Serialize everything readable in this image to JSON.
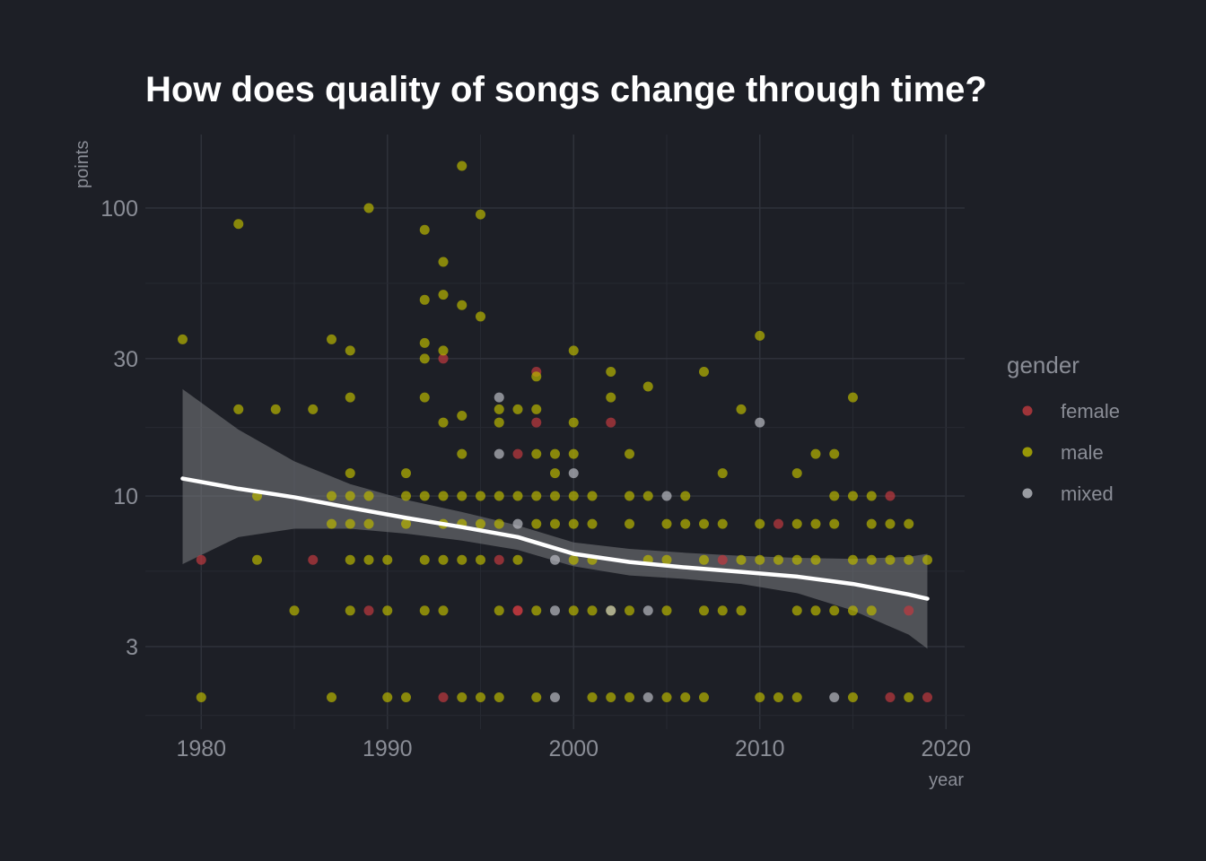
{
  "chart_data": {
    "type": "scatter",
    "title": "How does quality of songs change through time?",
    "xlabel": "year",
    "ylabel": "points",
    "xlim": [
      1977,
      2021
    ],
    "ylim": [
      1.55,
      180
    ],
    "y_scale": "log",
    "x_ticks": [
      "1980",
      "1990",
      "2000",
      "2010",
      "2020"
    ],
    "y_ticks": [
      "3",
      "10",
      "30",
      "100"
    ],
    "grid": true,
    "legend": {
      "title": "gender",
      "placement": "right",
      "entries": [
        {
          "label": "female",
          "color": "#c0393f"
        },
        {
          "label": "male",
          "color": "#b8b500"
        },
        {
          "label": "mixed",
          "color": "#b9bbc2"
        }
      ]
    },
    "series": [
      {
        "name": "female",
        "points": [
          [
            1980,
            6
          ],
          [
            1986,
            6
          ],
          [
            1989,
            4
          ],
          [
            1993,
            30
          ],
          [
            1997,
            14
          ],
          [
            1998,
            18
          ],
          [
            1998,
            27
          ],
          [
            2002,
            18
          ],
          [
            2008,
            6
          ],
          [
            2011,
            8
          ],
          [
            2017,
            10
          ],
          [
            2018,
            4
          ],
          [
            2017,
            2
          ],
          [
            2019,
            2
          ],
          [
            1993,
            2
          ],
          [
            1996,
            6
          ],
          [
            1997,
            4
          ],
          [
            1997,
            4
          ]
        ]
      },
      {
        "name": "male",
        "points": [
          [
            1979,
            35
          ],
          [
            1980,
            2
          ],
          [
            1982,
            88
          ],
          [
            1982,
            20
          ],
          [
            1983,
            10
          ],
          [
            1983,
            6
          ],
          [
            1984,
            20
          ],
          [
            1985,
            4
          ],
          [
            1986,
            20
          ],
          [
            1987,
            35
          ],
          [
            1987,
            10
          ],
          [
            1987,
            8
          ],
          [
            1987,
            2
          ],
          [
            1988,
            32
          ],
          [
            1988,
            22
          ],
          [
            1988,
            12
          ],
          [
            1988,
            10
          ],
          [
            1988,
            8
          ],
          [
            1988,
            6
          ],
          [
            1988,
            4
          ],
          [
            1989,
            100
          ],
          [
            1989,
            10
          ],
          [
            1989,
            8
          ],
          [
            1989,
            6
          ],
          [
            1990,
            6
          ],
          [
            1990,
            4
          ],
          [
            1990,
            2
          ],
          [
            1991,
            12
          ],
          [
            1991,
            10
          ],
          [
            1991,
            8
          ],
          [
            1991,
            2
          ],
          [
            1992,
            84
          ],
          [
            1992,
            48
          ],
          [
            1992,
            34
          ],
          [
            1992,
            30
          ],
          [
            1992,
            22
          ],
          [
            1992,
            10
          ],
          [
            1992,
            6
          ],
          [
            1992,
            4
          ],
          [
            1993,
            65
          ],
          [
            1993,
            50
          ],
          [
            1993,
            32
          ],
          [
            1993,
            18
          ],
          [
            1993,
            10
          ],
          [
            1993,
            8
          ],
          [
            1993,
            6
          ],
          [
            1993,
            4
          ],
          [
            1994,
            140
          ],
          [
            1994,
            46
          ],
          [
            1994,
            19
          ],
          [
            1994,
            14
          ],
          [
            1994,
            10
          ],
          [
            1994,
            8
          ],
          [
            1994,
            6
          ],
          [
            1994,
            2
          ],
          [
            1995,
            95
          ],
          [
            1995,
            42
          ],
          [
            1995,
            10
          ],
          [
            1995,
            8
          ],
          [
            1995,
            6
          ],
          [
            1995,
            2
          ],
          [
            1996,
            20
          ],
          [
            1996,
            18
          ],
          [
            1996,
            10
          ],
          [
            1996,
            8
          ],
          [
            1996,
            4
          ],
          [
            1996,
            2
          ],
          [
            1997,
            20
          ],
          [
            1997,
            10
          ],
          [
            1997,
            6
          ],
          [
            1998,
            20
          ],
          [
            1998,
            14
          ],
          [
            1998,
            26
          ],
          [
            1998,
            10
          ],
          [
            1998,
            8
          ],
          [
            1998,
            4
          ],
          [
            1998,
            2
          ],
          [
            1999,
            14
          ],
          [
            1999,
            12
          ],
          [
            1999,
            10
          ],
          [
            1999,
            8
          ],
          [
            2000,
            32
          ],
          [
            2000,
            18
          ],
          [
            2000,
            14
          ],
          [
            2000,
            10
          ],
          [
            2000,
            8
          ],
          [
            2000,
            6
          ],
          [
            2000,
            4
          ],
          [
            2001,
            10
          ],
          [
            2001,
            8
          ],
          [
            2001,
            6
          ],
          [
            2001,
            4
          ],
          [
            2001,
            2
          ],
          [
            2002,
            27
          ],
          [
            2002,
            22
          ],
          [
            2002,
            4
          ],
          [
            2002,
            2
          ],
          [
            2003,
            14
          ],
          [
            2003,
            10
          ],
          [
            2003,
            8
          ],
          [
            2003,
            4
          ],
          [
            2003,
            2
          ],
          [
            2004,
            24
          ],
          [
            2004,
            10
          ],
          [
            2004,
            6
          ],
          [
            2005,
            8
          ],
          [
            2005,
            6
          ],
          [
            2005,
            4
          ],
          [
            2005,
            2
          ],
          [
            2006,
            10
          ],
          [
            2006,
            8
          ],
          [
            2006,
            2
          ],
          [
            2007,
            27
          ],
          [
            2007,
            8
          ],
          [
            2007,
            6
          ],
          [
            2007,
            4
          ],
          [
            2007,
            2
          ],
          [
            2008,
            12
          ],
          [
            2008,
            8
          ],
          [
            2008,
            4
          ],
          [
            2009,
            20
          ],
          [
            2009,
            6
          ],
          [
            2009,
            4
          ],
          [
            2010,
            36
          ],
          [
            2010,
            8
          ],
          [
            2010,
            6
          ],
          [
            2010,
            2
          ],
          [
            2011,
            6
          ],
          [
            2011,
            2
          ],
          [
            2012,
            12
          ],
          [
            2012,
            8
          ],
          [
            2012,
            6
          ],
          [
            2012,
            4
          ],
          [
            2012,
            2
          ],
          [
            2013,
            14
          ],
          [
            2013,
            8
          ],
          [
            2013,
            6
          ],
          [
            2013,
            4
          ],
          [
            2014,
            14
          ],
          [
            2014,
            10
          ],
          [
            2014,
            8
          ],
          [
            2014,
            4
          ],
          [
            2015,
            22
          ],
          [
            2015,
            10
          ],
          [
            2015,
            6
          ],
          [
            2015,
            4
          ],
          [
            2015,
            2
          ],
          [
            2016,
            10
          ],
          [
            2016,
            8
          ],
          [
            2016,
            6
          ],
          [
            2016,
            4
          ],
          [
            2017,
            8
          ],
          [
            2017,
            6
          ],
          [
            2018,
            8
          ],
          [
            2018,
            6
          ],
          [
            2018,
            2
          ],
          [
            2019,
            6
          ]
        ]
      },
      {
        "name": "mixed",
        "points": [
          [
            1996,
            22
          ],
          [
            1996,
            14
          ],
          [
            1997,
            8
          ],
          [
            1999,
            6
          ],
          [
            1999,
            4
          ],
          [
            1999,
            2
          ],
          [
            2000,
            12
          ],
          [
            2002,
            4
          ],
          [
            2004,
            4
          ],
          [
            2004,
            2
          ],
          [
            2005,
            10
          ],
          [
            2010,
            18
          ],
          [
            2014,
            2
          ]
        ]
      }
    ],
    "smooth": {
      "x": [
        1979,
        1982,
        1985,
        1988,
        1991,
        1994,
        1997,
        2000,
        2003,
        2006,
        2009,
        2012,
        2015,
        2018,
        2019
      ],
      "y": [
        11.5,
        10.6,
        9.9,
        9.1,
        8.4,
        7.8,
        7.2,
        6.3,
        5.9,
        5.65,
        5.45,
        5.25,
        4.95,
        4.55,
        4.4
      ],
      "lower": [
        5.8,
        7.2,
        7.7,
        7.7,
        7.4,
        7.0,
        6.5,
        5.7,
        5.3,
        5.15,
        4.95,
        4.6,
        4.0,
        3.3,
        2.95
      ],
      "upper": [
        23.5,
        17.0,
        13.2,
        11.0,
        9.7,
        8.8,
        7.9,
        6.9,
        6.55,
        6.35,
        6.2,
        6.1,
        6.05,
        6.15,
        6.3
      ]
    }
  }
}
